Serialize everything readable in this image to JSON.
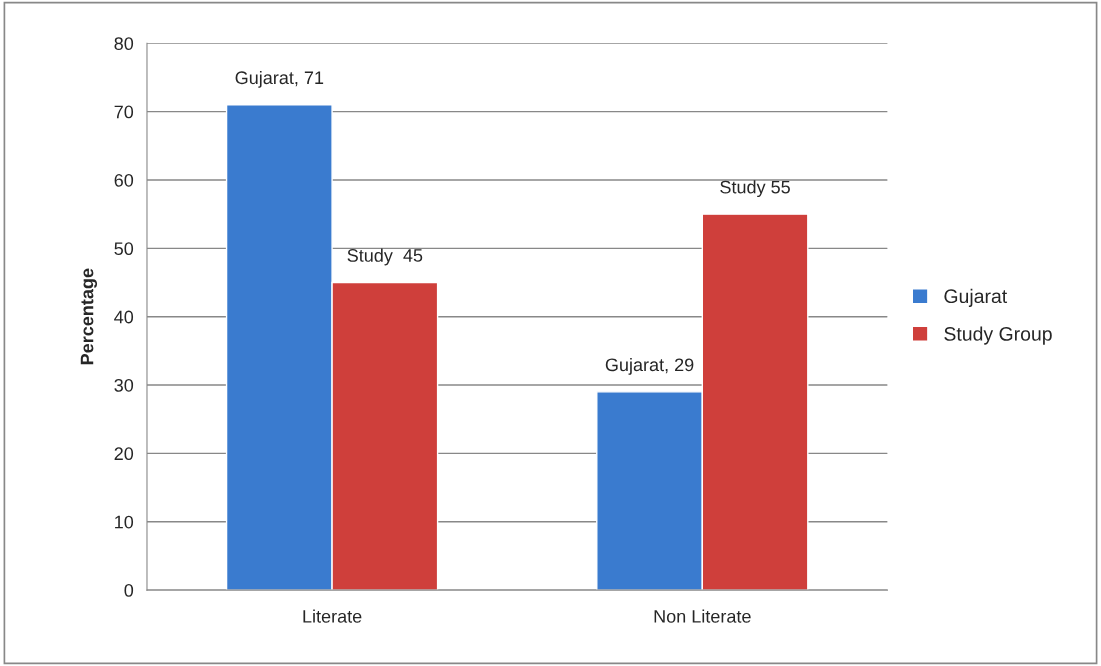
{
  "chart_data": {
    "type": "bar",
    "ylabel": "Percentage",
    "categories": [
      "Literate",
      "Non Literate"
    ],
    "series": [
      {
        "name": "Gujarat",
        "color": "#3a7bcf",
        "values": [
          71,
          29
        ],
        "value_labels": [
          "Gujarat, 71",
          "Gujarat, 29"
        ]
      },
      {
        "name": "Study Group",
        "color": "#cf3f3b",
        "values": [
          45,
          55
        ],
        "value_labels": [
          "Study  45",
          "Study 55"
        ]
      }
    ],
    "ylim": [
      0,
      80
    ],
    "yticks": [
      0,
      10,
      20,
      30,
      40,
      50,
      60,
      70,
      80
    ],
    "grid": "y",
    "legend": "right"
  }
}
